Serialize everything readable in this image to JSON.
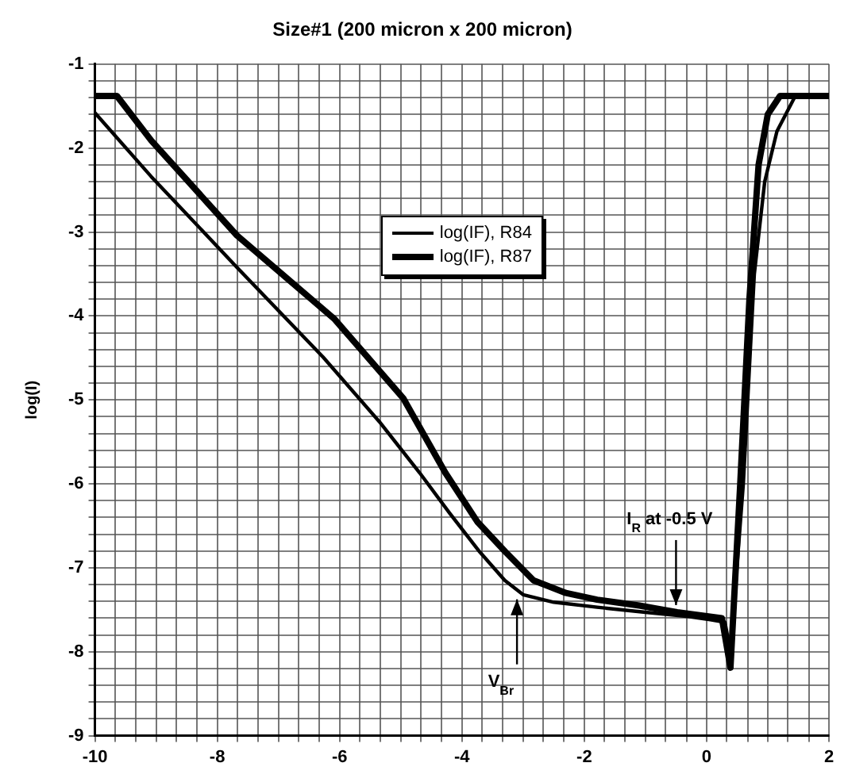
{
  "chart_data": {
    "type": "line",
    "title": "Size#1 (200 micron x 200 micron)",
    "ylabel": "log(I)",
    "xlim": [
      -10,
      2
    ],
    "ylim": [
      -9,
      -1
    ],
    "xticks": [
      -10,
      {
        "value": -9.67,
        "label": null
      },
      {
        "value": -9.33,
        "label": null
      },
      {
        "value": -9,
        "label": null
      },
      {
        "value": -8.67,
        "label": null
      },
      {
        "value": -8.33,
        "label": null
      },
      -8,
      {
        "value": -7.67,
        "label": null
      },
      {
        "value": -7.33,
        "label": null
      },
      {
        "value": -7,
        "label": null
      },
      {
        "value": -6.67,
        "label": null
      },
      {
        "value": -6.33,
        "label": null
      },
      -6,
      {
        "value": -5.67,
        "label": null
      },
      {
        "value": -5.33,
        "label": null
      },
      {
        "value": -5,
        "label": null
      },
      {
        "value": -4.67,
        "label": null
      },
      {
        "value": -4.33,
        "label": null
      },
      -4,
      {
        "value": -3.67,
        "label": null
      },
      {
        "value": -3.33,
        "label": null
      },
      {
        "value": -3,
        "label": null
      },
      {
        "value": -2.67,
        "label": null
      },
      {
        "value": -2.33,
        "label": null
      },
      -2,
      {
        "value": -1.67,
        "label": null
      },
      {
        "value": -1.33,
        "label": null
      },
      {
        "value": -1,
        "label": null
      },
      {
        "value": -0.67,
        "label": null
      },
      {
        "value": -0.33,
        "label": null
      },
      0,
      {
        "value": 0.33,
        "label": null
      },
      {
        "value": 0.67,
        "label": null
      },
      {
        "value": 1,
        "label": null
      },
      {
        "value": 1.33,
        "label": null
      },
      {
        "value": 1.67,
        "label": null
      },
      2
    ],
    "yticks": [
      -9,
      {
        "value": -8.8,
        "label": null
      },
      {
        "value": -8.6,
        "label": null
      },
      {
        "value": -8.4,
        "label": null
      },
      {
        "value": -8.2,
        "label": null
      },
      -8,
      {
        "value": -7.8,
        "label": null
      },
      {
        "value": -7.6,
        "label": null
      },
      {
        "value": -7.4,
        "label": null
      },
      {
        "value": -7.2,
        "label": null
      },
      -7,
      {
        "value": -6.8,
        "label": null
      },
      {
        "value": -6.6,
        "label": null
      },
      {
        "value": -6.4,
        "label": null
      },
      {
        "value": -6.2,
        "label": null
      },
      -6,
      {
        "value": -5.8,
        "label": null
      },
      {
        "value": -5.6,
        "label": null
      },
      {
        "value": -5.4,
        "label": null
      },
      {
        "value": -5.2,
        "label": null
      },
      -5,
      {
        "value": -4.8,
        "label": null
      },
      {
        "value": -4.6,
        "label": null
      },
      {
        "value": -4.4,
        "label": null
      },
      {
        "value": -4.2,
        "label": null
      },
      -4,
      {
        "value": -3.8,
        "label": null
      },
      {
        "value": -3.6,
        "label": null
      },
      {
        "value": -3.4,
        "label": null
      },
      {
        "value": -3.2,
        "label": null
      },
      -3,
      {
        "value": -2.8,
        "label": null
      },
      {
        "value": -2.6,
        "label": null
      },
      {
        "value": -2.4,
        "label": null
      },
      {
        "value": -2.2,
        "label": null
      },
      -2,
      {
        "value": -1.8,
        "label": null
      },
      {
        "value": -1.6,
        "label": null
      },
      {
        "value": -1.4,
        "label": null
      },
      {
        "value": -1.2,
        "label": null
      },
      -1
    ],
    "grid": true,
    "legend": "top",
    "line_style": "solid",
    "marker": "none",
    "series": [
      {
        "name": "log(IF), R84",
        "color": "#000000",
        "x": [
          -10,
          -9.08,
          -7.68,
          -6.27,
          -5.35,
          -4.69,
          -4.2,
          -3.71,
          -3.3,
          -3,
          -2.5,
          -1.79,
          -1,
          -0.3,
          0.08,
          0.3,
          0.39,
          0.6,
          0.78,
          0.95,
          1.15,
          1.45,
          2
        ],
        "values": [
          -1.58,
          -2.34,
          -3.42,
          -4.49,
          -5.26,
          -5.87,
          -6.35,
          -6.81,
          -7.15,
          -7.32,
          -7.41,
          -7.47,
          -7.53,
          -7.58,
          -7.62,
          -7.65,
          -8,
          -6,
          -3.5,
          -2.4,
          -1.8,
          -1.38,
          -1.38
        ]
      },
      {
        "name": "log(IF), R87",
        "color": "#000000",
        "x": [
          -10,
          -9.64,
          -9.08,
          -7.68,
          -6.08,
          -4.96,
          -4.27,
          -3.75,
          -3.29,
          -2.83,
          -2.3,
          -1.79,
          -1.1,
          -0.48,
          0.25,
          0.39,
          0.55,
          0.7,
          0.85,
          1,
          1.2,
          2
        ],
        "values": [
          -1.38,
          -1.38,
          -1.91,
          -3.04,
          -4.04,
          -4.98,
          -5.87,
          -6.45,
          -6.81,
          -7.15,
          -7.3,
          -7.38,
          -7.45,
          -7.53,
          -7.6,
          -8.19,
          -6,
          -3.8,
          -2.2,
          -1.6,
          -1.38,
          -1.38
        ]
      }
    ],
    "annotations": [
      {
        "text": "I$_{R}$ at -0.5 V",
        "x": -0.5,
        "y": -7.52
      },
      {
        "text": "V$_{Br}$",
        "x": -3.1,
        "y": -7.3
      }
    ]
  }
}
